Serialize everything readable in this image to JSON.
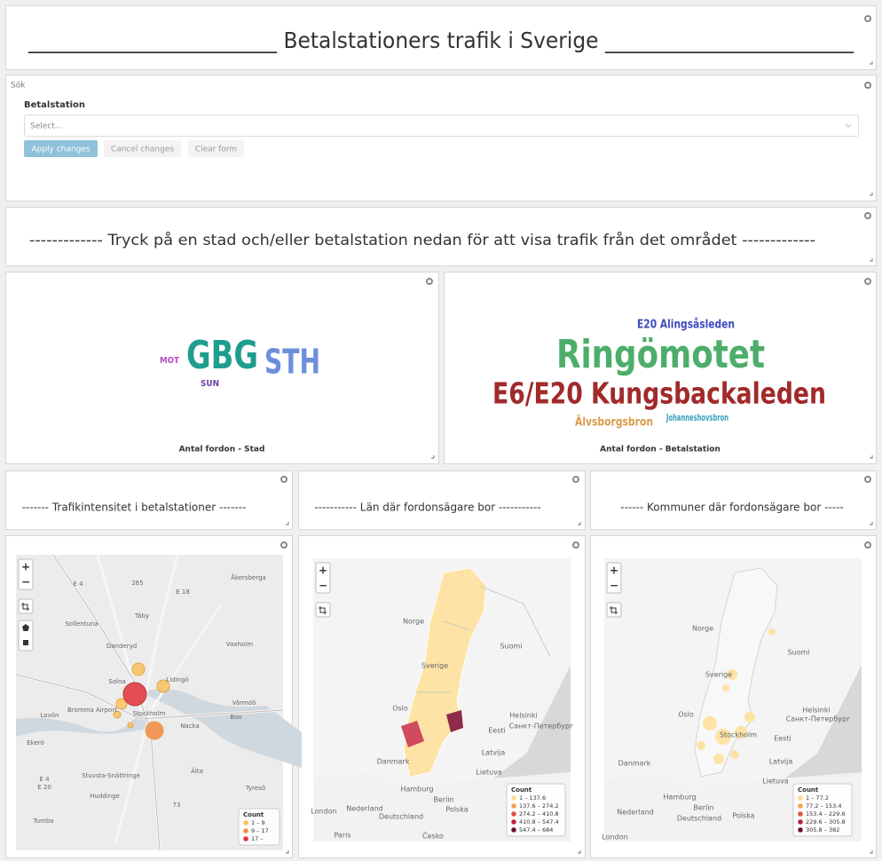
{
  "header": {
    "title": "________________________ Betalstationers trafik i Sverige ________________________"
  },
  "search": {
    "panel_title": "Sök",
    "field_label": "Betalstation",
    "placeholder": "Select...",
    "buttons": [
      "Apply changes",
      "Cancel changes",
      "Clear form"
    ]
  },
  "instruction": "------------- Tryck på en stad och/eller betalstation nedan för att visa trafik från det området -------------",
  "word_clouds": [
    {
      "words": [
        "MOT",
        "GBG",
        "STH",
        "SUN"
      ],
      "caption": "Antal fordon - Stad"
    },
    {
      "words": [
        "E20 Alingsåsleden",
        "Ringömotet",
        "E6/E20 Kungsbackaleden",
        "Älvsborgsbron",
        "Johanneshovsbron"
      ],
      "caption": "Antal fordon - Betalstation"
    }
  ],
  "section_titles": [
    "------- Trafikintensitet i betalstationer -------",
    "----------- Län där fordonsägare bor -----------",
    "------ Kommuner där fordonsägare bor -----"
  ],
  "map_controls": {
    "zoom_in": "+",
    "zoom_out": "−"
  },
  "maps": [
    {
      "labels": [
        "E 4",
        "265",
        "Åkersberga",
        "E 18",
        "Sollentuna",
        "Täby",
        "Danderyd",
        "Vaxholm",
        "Solna",
        "Lidingö",
        "Stockholm",
        "Bromma Airport",
        "Lovön",
        "Värmdö",
        "Boo",
        "Nacka",
        "Ekerö",
        "E 4",
        "E 20",
        "Stuvsta-Snättringe",
        "Älta",
        "Huddinge",
        "Tyresö",
        "73",
        "Tumba"
      ],
      "legend_title": "Count",
      "legend": [
        "1 – 9",
        "9 – 17",
        "17 –"
      ]
    },
    {
      "labels": [
        "Norge",
        "Sverige",
        "Suomi",
        "Oslo",
        "Helsinki",
        "Санкт-Петербург",
        "Eesti",
        "Danmark",
        "Latvija",
        "Lietuva",
        "Hamburg",
        "Berlin",
        "Polska",
        "London",
        "Nederland",
        "Deutschland",
        "Paris",
        "Česko"
      ],
      "legend_title": "Count",
      "legend": [
        "1 – 137.6",
        "137.6 – 274.2",
        "274.2 – 410.8",
        "410.8 – 547.4",
        "547.4 – 684"
      ]
    },
    {
      "labels": [
        "Norge",
        "Sverige",
        "Suomi",
        "Oslo",
        "Helsinki",
        "Санкт-Петербург",
        "Stockholm",
        "Eesti",
        "Danmark",
        "Latvija",
        "Lietuva",
        "Hamburg",
        "Berlin",
        "Polska",
        "Nederland",
        "Deutschland",
        "London"
      ],
      "legend_title": "Count",
      "legend": [
        "1 – 77.2",
        "77.2 – 153.4",
        "153.4 – 229.6",
        "229.6 – 305.8",
        "305.8 – 382"
      ]
    }
  ]
}
